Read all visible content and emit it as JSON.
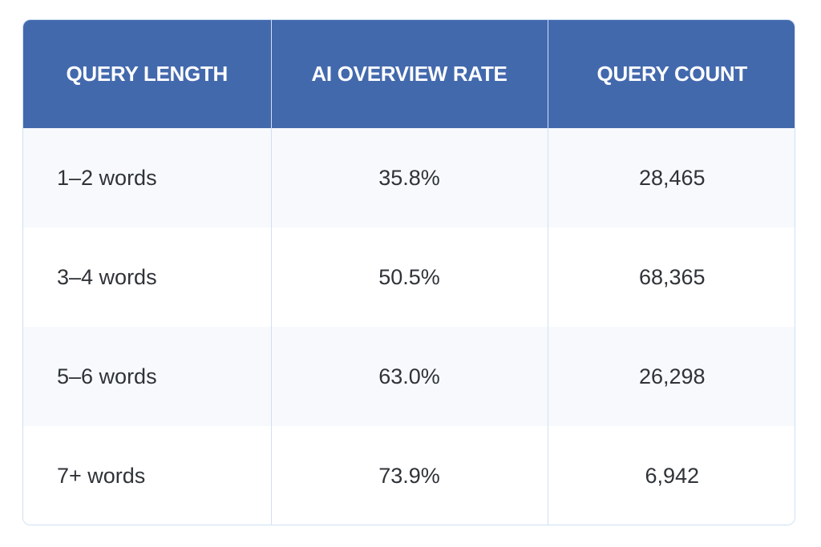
{
  "table": {
    "headers": [
      "QUERY LENGTH",
      "AI OVERVIEW RATE",
      "QUERY COUNT"
    ],
    "rows": [
      [
        "1–2 words",
        "35.8%",
        "28,465"
      ],
      [
        "3–4 words",
        "50.5%",
        "68,365"
      ],
      [
        "5–6 words",
        "63.0%",
        "26,298"
      ],
      [
        "7+ words",
        "73.9%",
        "6,942"
      ]
    ]
  },
  "colors": {
    "header_bg": "#4369ad",
    "header_text": "#ffffff",
    "row_alt_bg": "#f7f9fd",
    "border": "#cfe0f4"
  }
}
